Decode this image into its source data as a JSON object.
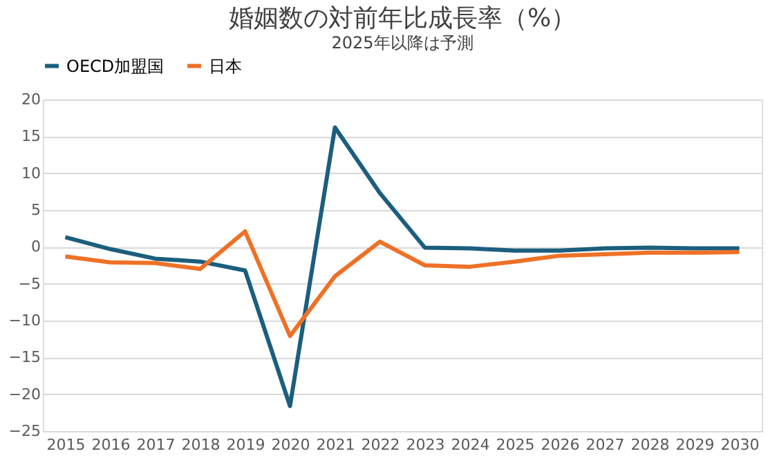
{
  "chart_data": {
    "type": "line",
    "title": "婚姻数の対前年比成長率（%）",
    "subtitle": "2025年以降は予測",
    "categories": [
      "2015",
      "2016",
      "2017",
      "2018",
      "2019",
      "2020",
      "2021",
      "2022",
      "2023",
      "2024",
      "2025",
      "2026",
      "2027",
      "2028",
      "2029",
      "2030"
    ],
    "series": [
      {
        "name": "OECD加盟国",
        "color": "#1b5e7e",
        "values": [
          1.3,
          -0.3,
          -1.6,
          -2.0,
          -3.2,
          -21.6,
          16.2,
          7.3,
          -0.1,
          -0.2,
          -0.5,
          -0.5,
          -0.2,
          -0.1,
          -0.2,
          -0.2
        ]
      },
      {
        "name": "日本",
        "color": "#ee7127",
        "values": [
          -1.3,
          -2.1,
          -2.2,
          -3.0,
          2.1,
          -12.1,
          -4.0,
          0.7,
          -2.5,
          -2.7,
          -2.0,
          -1.2,
          -1.0,
          -0.8,
          -0.8,
          -0.7
        ]
      }
    ],
    "ylim": [
      -25,
      20
    ],
    "yticks": [
      -25,
      -20,
      -15,
      -10,
      -5,
      0,
      5,
      10,
      15,
      20
    ],
    "grid": "y",
    "legend": "top",
    "marker": "none",
    "line_style": "solid"
  }
}
